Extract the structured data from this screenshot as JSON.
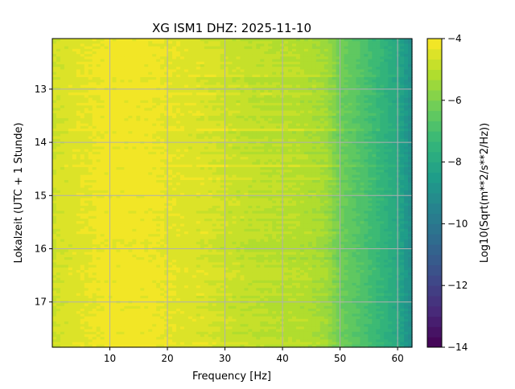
{
  "chart_data": {
    "type": "heatmap",
    "title": "XG ISM1  DHZ: 2025-11-10",
    "xlabel": "Frequency [Hz]",
    "ylabel": "Lokalzeit (UTC + 1 Stunde)",
    "colorbar_label": "Log10(Sqrt(m**2/s**2/Hz))",
    "xlim": [
      0,
      62.5
    ],
    "ylim": [
      12.05,
      17.85
    ],
    "y_inverted": true,
    "x_ticks": [
      10,
      20,
      30,
      40,
      50,
      60
    ],
    "x_tick_labels": [
      "10",
      "20",
      "30",
      "40",
      "50",
      "60"
    ],
    "y_ticks": [
      13,
      14,
      15,
      16,
      17
    ],
    "y_tick_labels": [
      "13",
      "14",
      "15",
      "16",
      "17"
    ],
    "colorbar_range": [
      -14,
      -4
    ],
    "colorbar_ticks": [
      -4,
      -6,
      -8,
      -10,
      -12,
      -14
    ],
    "colorbar_tick_labels": [
      "−4",
      "−6",
      "−8",
      "−10",
      "−12",
      "−14"
    ],
    "colormap": "viridis",
    "grid": true,
    "mean_spectrum": {
      "frequency_hz": [
        0,
        2.5,
        5,
        7.5,
        10,
        12.5,
        15,
        17.5,
        20,
        22.5,
        25,
        27.5,
        30,
        32.5,
        35,
        37.5,
        40,
        42.5,
        45,
        47.5,
        50,
        52.5,
        55,
        57.5,
        60,
        62.5
      ],
      "log10_amplitude": [
        -4.7,
        -4.55,
        -4.4,
        -4.3,
        -4.2,
        -4.2,
        -4.2,
        -4.25,
        -4.35,
        -4.45,
        -4.5,
        -4.6,
        -4.75,
        -4.85,
        -4.95,
        -5.0,
        -5.05,
        -5.1,
        -5.2,
        -5.4,
        -6.2,
        -6.6,
        -7.0,
        -7.5,
        -8.0,
        -9.2
      ]
    }
  }
}
